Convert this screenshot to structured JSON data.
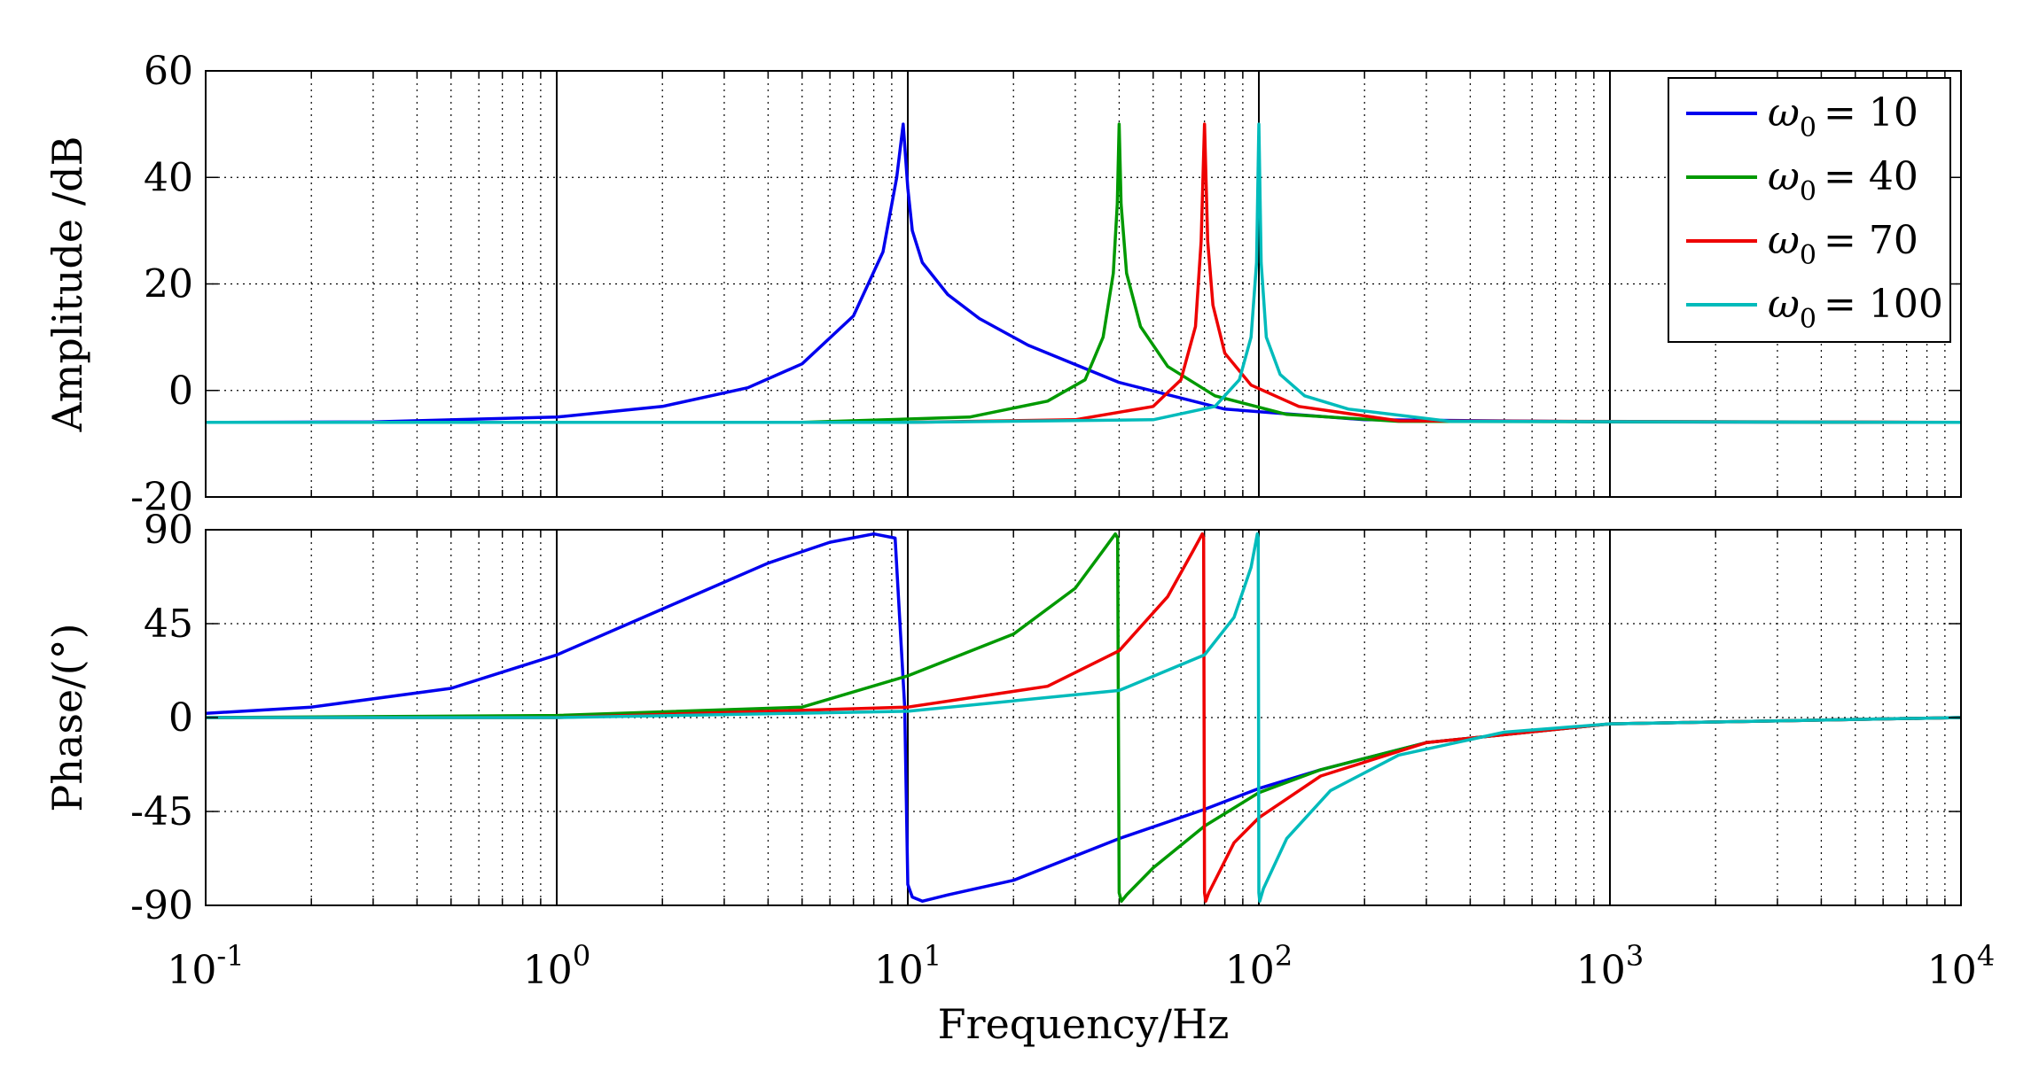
{
  "colors": {
    "background": "#ffffff",
    "axes": "#000000",
    "grid": "#000000"
  },
  "chart_data": [
    {
      "type": "line",
      "panel": "amplitude",
      "title": "",
      "xlabel": "",
      "ylabel": "Amplitude /dB",
      "xscale": "log",
      "xlim": [
        0.1,
        10000
      ],
      "ylim": [
        -20,
        60
      ],
      "yticks": [
        60,
        40,
        20,
        0,
        -20
      ],
      "ytick_labels": [
        "60",
        "40",
        "20",
        "0",
        "-20"
      ],
      "grid": true,
      "legend_position": "top-right",
      "series": [
        {
          "name": "ω0 = 10",
          "legend_symbol": "ω",
          "legend_sub": "0",
          "legend_value": "= 10",
          "color": "#0000ee",
          "omega0": 10,
          "x": [
            0.1,
            0.3,
            1,
            2,
            3.5,
            5,
            7,
            8.5,
            9.3,
            9.7,
            10,
            10.3,
            11,
            13,
            16,
            22,
            40,
            80,
            200,
            1000,
            10000
          ],
          "y": [
            -6.0,
            -5.9,
            -5.0,
            -3.0,
            0.5,
            5.0,
            14.0,
            26.0,
            40.0,
            50.0,
            38.0,
            30.0,
            24.0,
            18.0,
            13.5,
            8.5,
            1.5,
            -3.5,
            -5.5,
            -5.9,
            -6.0
          ]
        },
        {
          "name": "ω0 = 40",
          "legend_symbol": "ω",
          "legend_sub": "0",
          "legend_value": "= 40",
          "color": "#009900",
          "omega0": 40,
          "x": [
            0.1,
            5,
            15,
            25,
            32,
            36,
            38.5,
            39.5,
            40,
            40.5,
            42,
            46,
            55,
            75,
            120,
            250,
            10000
          ],
          "y": [
            -6.0,
            -6.0,
            -5.0,
            -2.0,
            2.0,
            10.0,
            22.0,
            35.0,
            50.0,
            35.0,
            22.0,
            12.0,
            4.5,
            -1.0,
            -4.5,
            -5.8,
            -6.0
          ]
        },
        {
          "name": "ω0 = 70",
          "legend_symbol": "ω",
          "legend_sub": "0",
          "legend_value": "= 70",
          "color": "#ee0000",
          "omega0": 70,
          "x": [
            0.1,
            10,
            30,
            50,
            60,
            66,
            68.5,
            70,
            71.5,
            74,
            80,
            95,
            130,
            250,
            10000
          ],
          "y": [
            -6.0,
            -6.0,
            -5.5,
            -3.0,
            2.0,
            12.0,
            28.0,
            50.0,
            28.0,
            16.0,
            7.0,
            1.0,
            -3.0,
            -5.7,
            -6.0
          ]
        },
        {
          "name": "ω0 = 100",
          "legend_symbol": "ω",
          "legend_sub": "0",
          "legend_value": "= 100",
          "color": "#00bbbb",
          "omega0": 100,
          "x": [
            0.1,
            10,
            50,
            75,
            88,
            95,
            98.5,
            100,
            101.5,
            105,
            115,
            135,
            180,
            350,
            10000
          ],
          "y": [
            -6.0,
            -6.0,
            -5.5,
            -3.0,
            2.0,
            10.0,
            24.0,
            50.0,
            24.0,
            10.0,
            3.0,
            -1.0,
            -3.5,
            -5.8,
            -6.0
          ]
        }
      ]
    },
    {
      "type": "line",
      "panel": "phase",
      "title": "",
      "xlabel": "Frequency/Hz",
      "ylabel": "Phase/(°)",
      "xscale": "log",
      "xlim": [
        0.1,
        10000
      ],
      "ylim": [
        -90,
        90
      ],
      "yticks": [
        90,
        45,
        0,
        -45,
        -90
      ],
      "ytick_labels": [
        "90",
        "45",
        "0",
        "-45",
        "-90"
      ],
      "xticks": [
        0.1,
        1,
        10,
        100,
        1000,
        10000
      ],
      "xtick_bases": [
        "10",
        "10",
        "10",
        "10",
        "10",
        "10"
      ],
      "xtick_exponents": [
        "-1",
        "0",
        "1",
        "2",
        "3",
        "4"
      ],
      "grid": true,
      "series": [
        {
          "name": "ω0 = 10",
          "color": "#0000ee",
          "omega0": 10,
          "x": [
            0.1,
            0.2,
            0.5,
            1,
            2,
            4,
            6,
            8,
            9.2,
            9.8,
            10,
            10.3,
            11,
            13,
            20,
            40,
            70,
            100,
            150,
            300,
            1000,
            10000
          ],
          "y": [
            2.0,
            5.0,
            14.0,
            30.0,
            52.0,
            74.0,
            84.0,
            88.0,
            86.0,
            5.0,
            -80.0,
            -86.0,
            -88.0,
            -85.0,
            -78.0,
            -58.0,
            -44.0,
            -34.0,
            -25.0,
            -12.0,
            -3.0,
            0.0
          ]
        },
        {
          "name": "ω0 = 40",
          "color": "#009900",
          "omega0": 40,
          "x": [
            0.1,
            1,
            5,
            10,
            20,
            30,
            36,
            39,
            39.6,
            40,
            40.6,
            42,
            50,
            70,
            100,
            150,
            300,
            1000,
            10000
          ],
          "y": [
            0.0,
            1.0,
            5.0,
            20.0,
            40.0,
            62.0,
            80.0,
            88.0,
            86.0,
            -84.0,
            -88.0,
            -85.0,
            -72.0,
            -52.0,
            -36.0,
            -25.0,
            -12.0,
            -3.0,
            0.0
          ]
        },
        {
          "name": "ω0 = 70",
          "color": "#ee0000",
          "omega0": 70,
          "x": [
            0.1,
            1,
            10,
            25,
            40,
            55,
            65,
            69,
            69.6,
            70,
            70.6,
            72,
            85,
            100,
            150,
            300,
            1000,
            10000
          ],
          "y": [
            0.0,
            0.0,
            5.0,
            15.0,
            32.0,
            58.0,
            80.0,
            88.0,
            86.0,
            -84.0,
            -88.0,
            -84.0,
            -60.0,
            -48.0,
            -28.0,
            -12.0,
            -3.0,
            0.0
          ]
        },
        {
          "name": "ω0 = 100",
          "color": "#00bbbb",
          "omega0": 100,
          "x": [
            0.1,
            1,
            10,
            40,
            70,
            85,
            95,
            99,
            99.6,
            100,
            100.6,
            103,
            120,
            160,
            250,
            500,
            1000,
            10000
          ],
          "y": [
            0.0,
            0.0,
            3.0,
            13.0,
            30.0,
            48.0,
            72.0,
            88.0,
            86.0,
            -84.0,
            -88.0,
            -82.0,
            -58.0,
            -35.0,
            -18.0,
            -7.0,
            -3.0,
            0.0
          ]
        }
      ]
    }
  ]
}
